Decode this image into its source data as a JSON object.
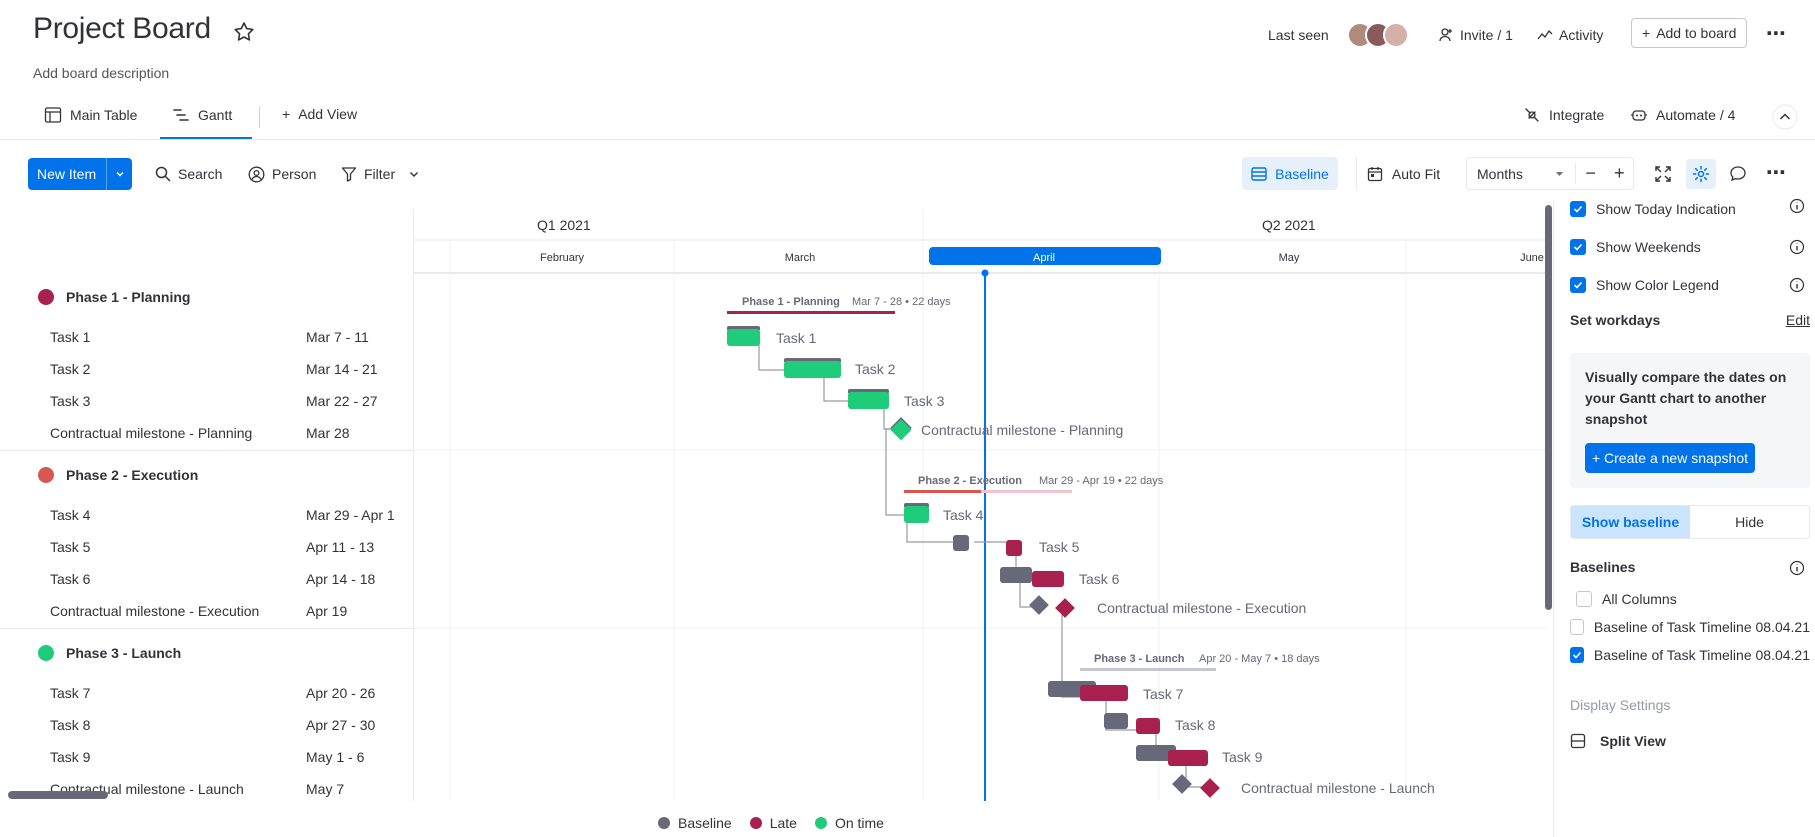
{
  "board": {
    "title": "Project Board",
    "description": "Add board description",
    "last_seen_label": "Last seen",
    "invite_label": "Invite / 1",
    "activity_label": "Activity",
    "add_to_board_label": "Add to board"
  },
  "views": {
    "tabs": [
      {
        "label": "Main Table"
      },
      {
        "label": "Gantt"
      }
    ],
    "add_view_label": "Add View",
    "integrate_label": "Integrate",
    "automate_label": "Automate / 4"
  },
  "toolbar": {
    "new_item_label": "New Item",
    "search_label": "Search",
    "person_label": "Person",
    "filter_label": "Filter",
    "baseline_label": "Baseline",
    "auto_fit_label": "Auto Fit",
    "zoom_value": "Months"
  },
  "timeline": {
    "quarters": [
      "Q1 2021",
      "Q2 2021"
    ],
    "months": [
      "February",
      "March",
      "April",
      "May",
      "June"
    ],
    "current_month": "April"
  },
  "groups": [
    {
      "name": "Phase 1 - Planning",
      "color": "#a8204e",
      "summary_title": "Phase 1 - Planning",
      "summary_meta": "Mar 7 - 28 • 22 days",
      "items": [
        {
          "name": "Task 1",
          "dates": "Mar 7 - 11"
        },
        {
          "name": "Task 2",
          "dates": "Mar 14 - 21"
        },
        {
          "name": "Task 3",
          "dates": "Mar 22 - 27"
        },
        {
          "name": "Contractual milestone - Planning",
          "dates": "Mar 28"
        }
      ]
    },
    {
      "name": "Phase 2 - Execution",
      "color": "#d7584f",
      "summary_title": "Phase 2 - Execution",
      "summary_meta": "Mar 29 - Apr 19 • 22 days",
      "items": [
        {
          "name": "Task 4",
          "dates": "Mar 29 - Apr 1"
        },
        {
          "name": "Task 5",
          "dates": "Apr 11 - 13"
        },
        {
          "name": "Task 6",
          "dates": "Apr 14 - 18"
        },
        {
          "name": "Contractual milestone - Execution",
          "dates": "Apr 19"
        }
      ]
    },
    {
      "name": "Phase 3 - Launch",
      "color": "#1fcc7a",
      "summary_title": "Phase 3 - Launch",
      "summary_meta": "Apr 20 - May 7 • 18 days",
      "items": [
        {
          "name": "Task 7",
          "dates": "Apr 20 - 26"
        },
        {
          "name": "Task 8",
          "dates": "Apr 27 - 30"
        },
        {
          "name": "Task 9",
          "dates": "May 1 - 6"
        },
        {
          "name": "Contractual milestone - Launch",
          "dates": "May 7"
        }
      ]
    }
  ],
  "legend": [
    {
      "label": "Baseline",
      "color": "#676879"
    },
    {
      "label": "Late",
      "color": "#a8204e"
    },
    {
      "label": "On time",
      "color": "#1fcc7a"
    }
  ],
  "settings_panel": {
    "show_today_label": "Show Today Indication",
    "show_weekends_label": "Show Weekends",
    "show_color_legend_label": "Show Color Legend",
    "set_workdays_label": "Set workdays",
    "edit_label": "Edit",
    "snapshot_text": "Visually compare the dates on your Gantt chart to another snapshot",
    "create_snapshot_label": "+ Create a new snapshot",
    "show_baseline_label": "Show baseline",
    "hide_label": "Hide",
    "baselines_label": "Baselines",
    "all_columns_label": "All Columns",
    "baseline_1_label": "Baseline of Task Timeline 08.04.21",
    "baseline_2_label": "Baseline of Task Timeline 08.04.21",
    "display_settings_label": "Display Settings",
    "split_view_label": "Split View"
  },
  "colors": {
    "accent": "#0073ea",
    "on_time": "#1fcc7a",
    "late": "#a8204e",
    "baseline": "#676879"
  }
}
